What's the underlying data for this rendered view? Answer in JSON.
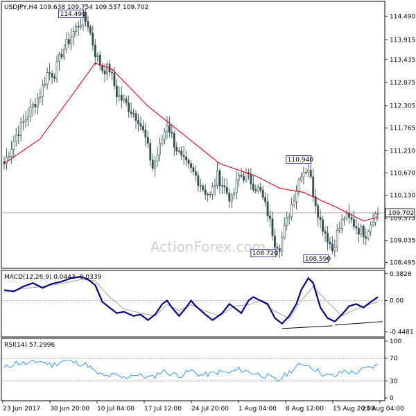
{
  "chart_data": {
    "type": "candlestick",
    "symbol_line": "USDJPY,H4  109.638 109.754 109.537 109.702",
    "watermark": "ActionForex.com",
    "current_price": 109.702,
    "current_price_label": "109.702",
    "price_axis": {
      "range": [
        108.35,
        114.85
      ],
      "ticks": [
        114.49,
        113.915,
        113.435,
        112.875,
        112.305,
        111.765,
        111.21,
        110.67,
        110.13,
        109.575,
        109.035,
        108.495
      ],
      "tick_labels": [
        "114.490",
        "113.915",
        "113.435",
        "112.875",
        "112.305",
        "111.765",
        "111.210",
        "110.670",
        "110.130",
        "109.575",
        "109.035",
        "108.495"
      ]
    },
    "x_labels": [
      "23 Jun 2017",
      "30 Jun 20:00",
      "10 Jul 04:00",
      "17 Jul 12:00",
      "24 Jul 20:00",
      "1 Aug 04:00",
      "8 Aug 12:00",
      "15 Aug 20:00",
      "23 Aug 04:00"
    ],
    "price_anchors": [
      [
        0,
        110.9
      ],
      [
        5,
        111.6
      ],
      [
        10,
        112.1
      ],
      [
        15,
        112.6
      ],
      [
        18,
        113.1
      ],
      [
        21,
        113.1
      ],
      [
        24,
        113.6
      ],
      [
        27,
        113.9
      ],
      [
        30,
        114.2
      ],
      [
        33,
        114.45
      ],
      [
        35,
        114.3
      ],
      [
        38,
        113.6
      ],
      [
        41,
        113.2
      ],
      [
        44,
        113.2
      ],
      [
        47,
        112.6
      ],
      [
        50,
        112.4
      ],
      [
        53,
        112.2
      ],
      [
        56,
        112.0
      ],
      [
        59,
        111.5
      ],
      [
        62,
        110.8
      ],
      [
        65,
        111.3
      ],
      [
        68,
        111.9
      ],
      [
        71,
        111.4
      ],
      [
        74,
        111.0
      ],
      [
        77,
        110.8
      ],
      [
        80,
        110.6
      ],
      [
        83,
        110.3
      ],
      [
        86,
        110.1
      ],
      [
        89,
        110.6
      ],
      [
        92,
        110.3
      ],
      [
        95,
        110.0
      ],
      [
        98,
        110.6
      ],
      [
        101,
        110.6
      ],
      [
        104,
        110.4
      ],
      [
        107,
        110.2
      ],
      [
        110,
        109.7
      ],
      [
        113,
        109.0
      ],
      [
        115,
        108.9
      ],
      [
        118,
        109.5
      ],
      [
        121,
        110.1
      ],
      [
        124,
        110.7
      ],
      [
        127,
        110.8
      ],
      [
        129,
        110.2
      ],
      [
        132,
        109.5
      ],
      [
        135,
        109.1
      ],
      [
        137,
        108.8
      ],
      [
        139,
        109.2
      ],
      [
        142,
        109.6
      ],
      [
        145,
        109.5
      ],
      [
        148,
        109.3
      ],
      [
        151,
        109.2
      ],
      [
        154,
        109.6
      ],
      [
        156,
        109.7
      ]
    ],
    "moving_average_anchors": [
      [
        0,
        110.9
      ],
      [
        15,
        111.5
      ],
      [
        30,
        112.7
      ],
      [
        38,
        113.35
      ],
      [
        45,
        113.2
      ],
      [
        60,
        112.3
      ],
      [
        75,
        111.6
      ],
      [
        90,
        110.9
      ],
      [
        105,
        110.6
      ],
      [
        115,
        110.3
      ],
      [
        125,
        110.2
      ],
      [
        140,
        109.8
      ],
      [
        150,
        109.5
      ],
      [
        156,
        109.6
      ]
    ],
    "annotations": [
      {
        "label": "114.490",
        "value": 114.49,
        "bar": 32
      },
      {
        "label": "110.940",
        "value": 110.94,
        "bar": 127
      },
      {
        "label": "108.720",
        "value": 108.72,
        "bar": 114
      },
      {
        "label": "108.590",
        "value": 108.59,
        "bar": 136
      }
    ],
    "macd": {
      "label": "MACD(12,26,9) 0.0443 -0.0339",
      "range": [
        -0.52,
        0.43
      ],
      "ticks": [
        0.3828,
        0.0,
        -0.4481
      ],
      "tick_labels": [
        "0.3828",
        "0.00",
        "-0.4481"
      ],
      "line_anchors": [
        [
          0,
          0.15
        ],
        [
          4,
          0.13
        ],
        [
          8,
          0.2
        ],
        [
          12,
          0.25
        ],
        [
          16,
          0.18
        ],
        [
          20,
          0.24
        ],
        [
          24,
          0.27
        ],
        [
          28,
          0.32
        ],
        [
          32,
          0.34
        ],
        [
          35,
          0.3
        ],
        [
          38,
          0.22
        ],
        [
          41,
          -0.02
        ],
        [
          44,
          -0.1
        ],
        [
          47,
          -0.18
        ],
        [
          50,
          -0.16
        ],
        [
          54,
          -0.22
        ],
        [
          57,
          -0.2
        ],
        [
          60,
          -0.28
        ],
        [
          63,
          -0.2
        ],
        [
          66,
          -0.05
        ],
        [
          68,
          0.0
        ],
        [
          70,
          -0.1
        ],
        [
          73,
          -0.22
        ],
        [
          76,
          -0.1
        ],
        [
          78,
          0.0
        ],
        [
          80,
          -0.08
        ],
        [
          84,
          -0.2
        ],
        [
          87,
          -0.28
        ],
        [
          91,
          -0.18
        ],
        [
          94,
          -0.05
        ],
        [
          96,
          -0.1
        ],
        [
          99,
          -0.18
        ],
        [
          102,
          0.0
        ],
        [
          104,
          0.05
        ],
        [
          107,
          0.0
        ],
        [
          110,
          -0.05
        ],
        [
          113,
          -0.25
        ],
        [
          116,
          -0.33
        ],
        [
          119,
          -0.22
        ],
        [
          122,
          -0.05
        ],
        [
          124,
          0.15
        ],
        [
          127,
          0.32
        ],
        [
          129,
          0.25
        ],
        [
          132,
          -0.1
        ],
        [
          135,
          -0.25
        ],
        [
          138,
          -0.3
        ],
        [
          141,
          -0.2
        ],
        [
          144,
          -0.08
        ],
        [
          147,
          -0.05
        ],
        [
          150,
          -0.1
        ],
        [
          153,
          -0.02
        ],
        [
          156,
          0.05
        ]
      ],
      "signal_anchors": [
        [
          0,
          0.12
        ],
        [
          8,
          0.17
        ],
        [
          16,
          0.2
        ],
        [
          24,
          0.24
        ],
        [
          32,
          0.3
        ],
        [
          38,
          0.28
        ],
        [
          44,
          0.05
        ],
        [
          50,
          -0.12
        ],
        [
          57,
          -0.18
        ],
        [
          63,
          -0.22
        ],
        [
          68,
          -0.06
        ],
        [
          73,
          -0.14
        ],
        [
          78,
          -0.06
        ],
        [
          84,
          -0.15
        ],
        [
          90,
          -0.22
        ],
        [
          96,
          -0.08
        ],
        [
          102,
          -0.06
        ],
        [
          107,
          0.0
        ],
        [
          113,
          -0.15
        ],
        [
          119,
          -0.26
        ],
        [
          124,
          0.0
        ],
        [
          129,
          0.2
        ],
        [
          135,
          -0.02
        ],
        [
          141,
          -0.22
        ],
        [
          147,
          -0.12
        ],
        [
          153,
          -0.05
        ],
        [
          156,
          -0.02
        ]
      ],
      "trendlines": [
        {
          "from": [
            116,
            -0.4
          ],
          "to": [
            137,
            -0.36
          ]
        },
        {
          "from": [
            138,
            -0.35
          ],
          "to": [
            158,
            -0.3
          ]
        }
      ]
    },
    "rsi": {
      "label": "RSI(14) 57.2996",
      "range": [
        0,
        100
      ],
      "ticks": [
        100,
        70,
        30,
        0
      ],
      "tick_labels": [
        "100",
        "70",
        "30",
        "0"
      ],
      "anchors": [
        [
          0,
          52
        ],
        [
          5,
          62
        ],
        [
          10,
          60
        ],
        [
          15,
          65
        ],
        [
          20,
          58
        ],
        [
          25,
          66
        ],
        [
          30,
          62
        ],
        [
          35,
          58
        ],
        [
          38,
          45
        ],
        [
          42,
          38
        ],
        [
          46,
          40
        ],
        [
          50,
          35
        ],
        [
          54,
          42
        ],
        [
          58,
          38
        ],
        [
          62,
          36
        ],
        [
          66,
          48
        ],
        [
          70,
          42
        ],
        [
          74,
          40
        ],
        [
          78,
          48
        ],
        [
          82,
          40
        ],
        [
          86,
          42
        ],
        [
          90,
          46
        ],
        [
          94,
          44
        ],
        [
          98,
          50
        ],
        [
          102,
          46
        ],
        [
          106,
          42
        ],
        [
          110,
          38
        ],
        [
          114,
          30
        ],
        [
          118,
          42
        ],
        [
          122,
          55
        ],
        [
          126,
          60
        ],
        [
          130,
          50
        ],
        [
          134,
          40
        ],
        [
          138,
          38
        ],
        [
          142,
          48
        ],
        [
          146,
          44
        ],
        [
          150,
          50
        ],
        [
          154,
          55
        ],
        [
          156,
          57
        ]
      ]
    },
    "colors": {
      "candles": "#2f4f4f",
      "moving_average": "#e0001a",
      "macd_line": "#000080",
      "macd_signal": "#a0a0a0",
      "rsi_line": "#1e90ff",
      "current_price_line": "#a0a0a0",
      "watermark": "#d0d0d0",
      "trendline": "#000000"
    }
  }
}
